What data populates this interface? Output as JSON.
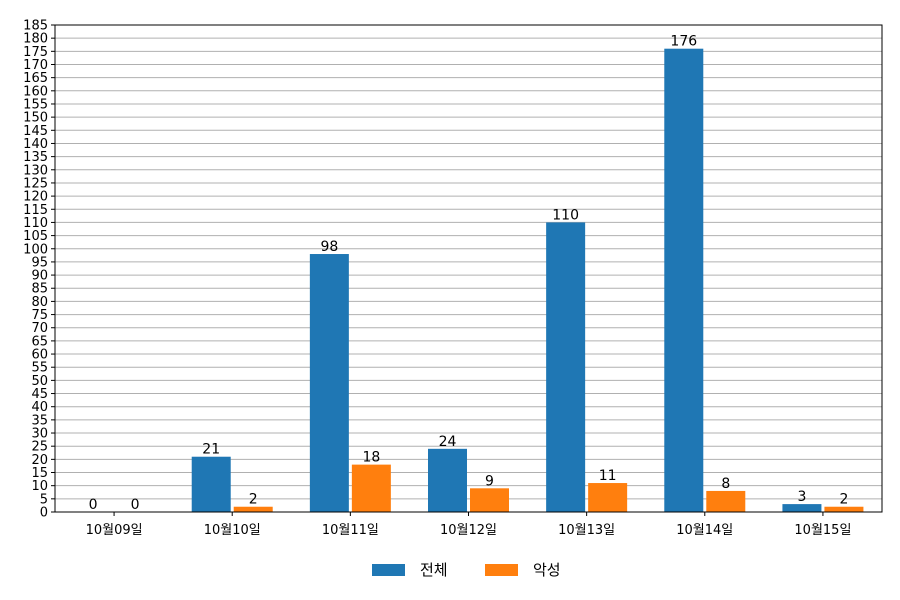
{
  "chart_data": {
    "type": "bar",
    "title": "",
    "xlabel": "",
    "ylabel": "",
    "categories": [
      "10월09일",
      "10월10일",
      "10월11일",
      "10월12일",
      "10월13일",
      "10월14일",
      "10월15일"
    ],
    "series": [
      {
        "name": "전체",
        "values": [
          0,
          21,
          98,
          24,
          110,
          176,
          3
        ],
        "color": "#1f77b4"
      },
      {
        "name": "악성",
        "values": [
          0,
          2,
          18,
          9,
          11,
          8,
          2
        ],
        "color": "#ff7f0e"
      }
    ],
    "ylim": [
      0,
      185
    ],
    "ytick_step": 5,
    "grid": true,
    "legend_position": "bottom-center"
  }
}
